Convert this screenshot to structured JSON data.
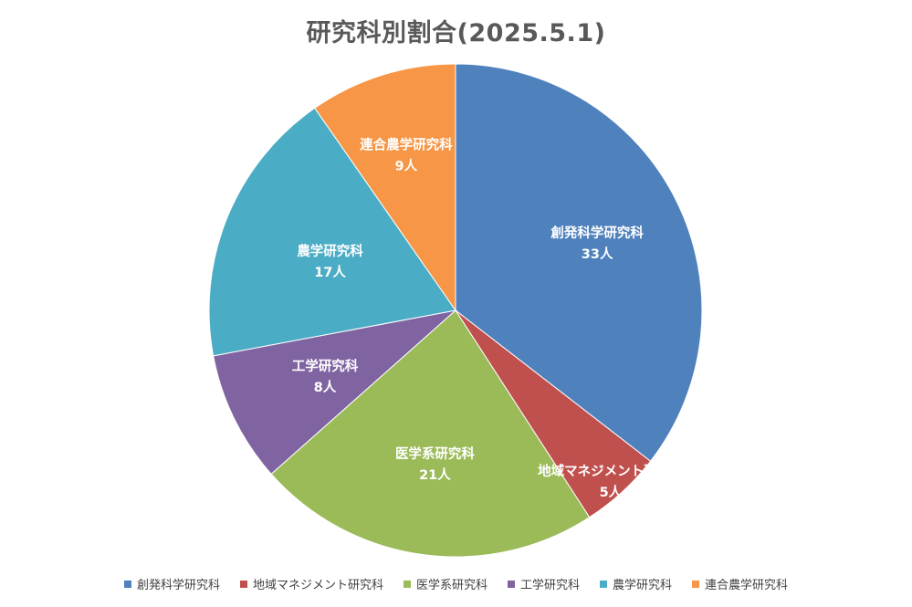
{
  "chart_data": {
    "type": "pie",
    "title": "研究科別割合(2025.5.1)",
    "unit": "人",
    "slices": [
      {
        "label": "創発科学研究科",
        "value": 33,
        "value_text": "33人",
        "color": "#4F81BD"
      },
      {
        "label": "地域マネジメント研究科",
        "value": 5,
        "value_text": "5人",
        "color": "#C0504D"
      },
      {
        "label": "医学系研究科",
        "value": 21,
        "value_text": "21人",
        "color": "#9BBB59"
      },
      {
        "label": "工学研究科",
        "value": 8,
        "value_text": "8人",
        "color": "#8064A2"
      },
      {
        "label": "農学研究科",
        "value": 17,
        "value_text": "17人",
        "color": "#4BACC6"
      },
      {
        "label": "連合農学研究科",
        "value": 9,
        "value_text": "9人",
        "color": "#F79646"
      }
    ],
    "start_angle": "12 o'clock",
    "direction": "clockwise",
    "legend_position": "bottom"
  }
}
